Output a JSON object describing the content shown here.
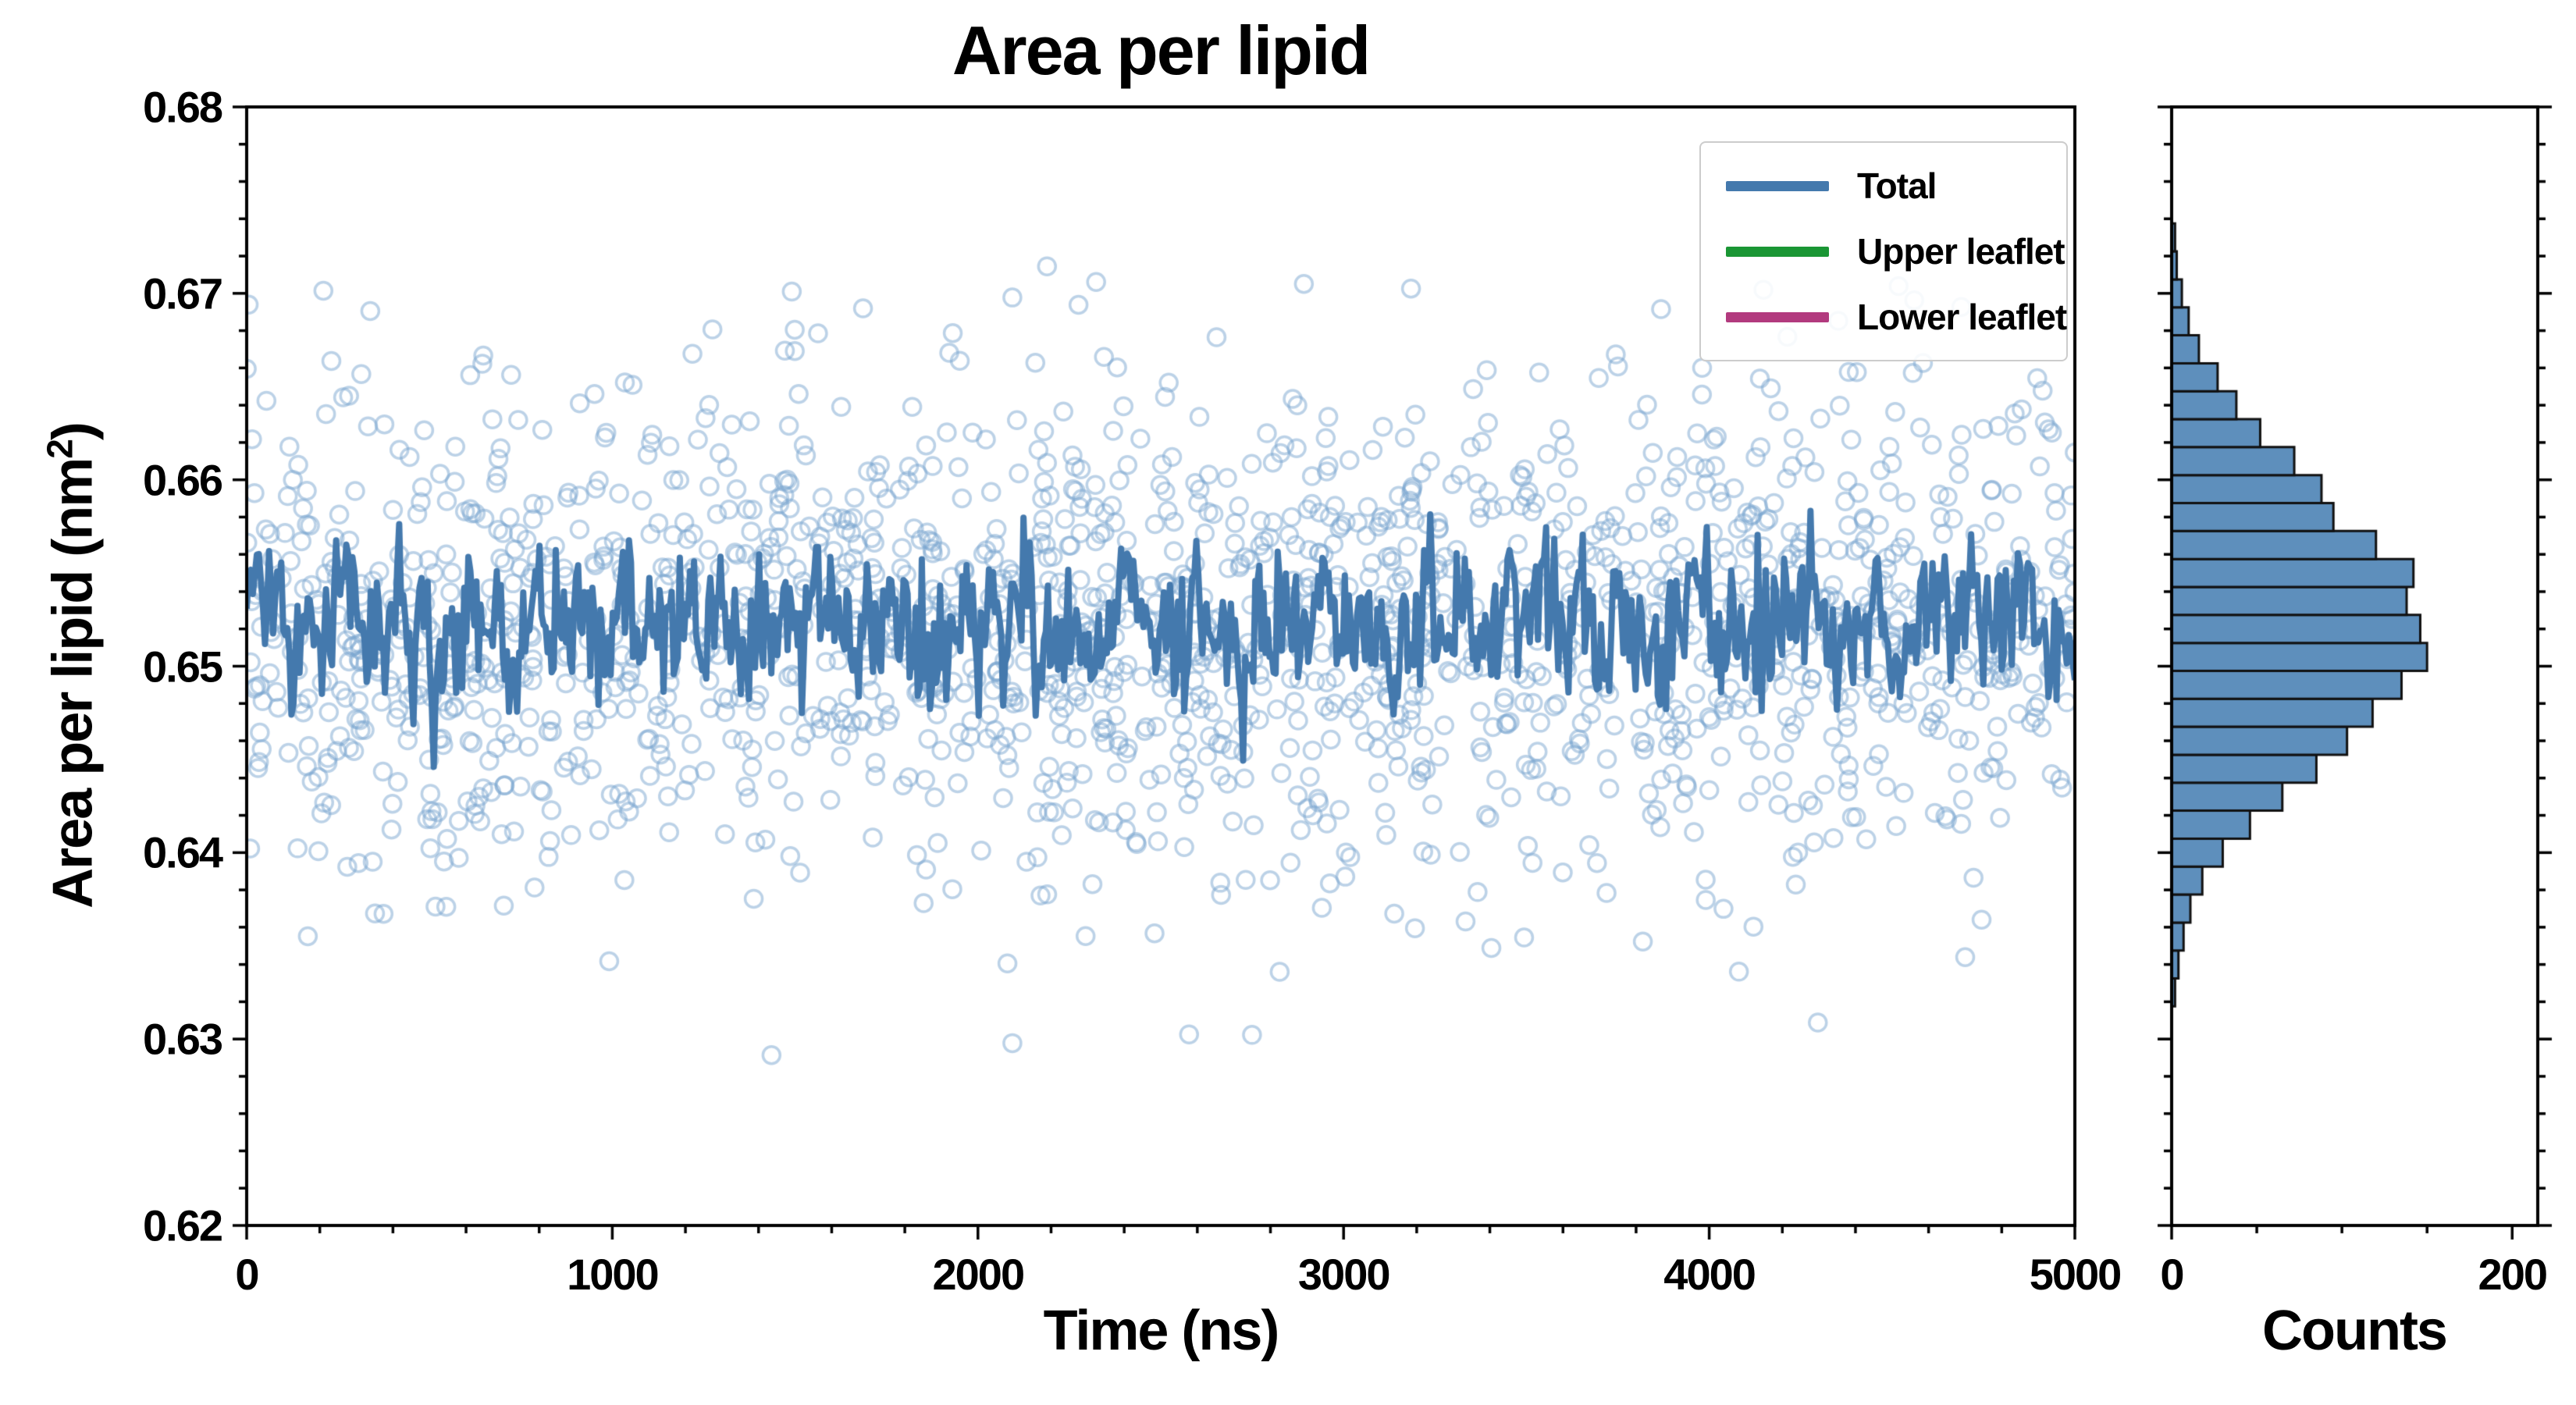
{
  "title": "Area per lipid",
  "chart_data": [
    {
      "type": "scatter",
      "title": "Area per lipid",
      "xlabel": "Time (ns)",
      "ylabel": "Area per lipid (nm2)",
      "ylabel_parts": {
        "main": "Area per lipid (nm",
        "sup": "2",
        "end": ")"
      },
      "xlim": [
        0,
        5000
      ],
      "ylim": [
        0.62,
        0.68
      ],
      "xtick_values": [
        0,
        1000,
        2000,
        3000,
        4000,
        5000
      ],
      "xtick_labels": [
        "0",
        "1000",
        "2000",
        "3000",
        "4000",
        "5000"
      ],
      "ytick_values": [
        0.62,
        0.63,
        0.64,
        0.65,
        0.66,
        0.67,
        0.68
      ],
      "ytick_labels": [
        "0.62",
        "0.63",
        "0.64",
        "0.65",
        "0.66",
        "0.67",
        "0.68"
      ],
      "x_minor_step": 200,
      "y_minor_step": 0.002,
      "grid": false,
      "legend_position": "upper right",
      "legend": [
        {
          "label": "Total",
          "color": "#4479ad"
        },
        {
          "label": "Upper leaflet",
          "color": "#1a9634"
        },
        {
          "label": "Lower leaflet",
          "color": "#b23a7e"
        }
      ],
      "series": [
        {
          "name": "Total (raw samples)",
          "style": "open-circle-scatter",
          "color": "#7aa6cf",
          "opacity": 0.5,
          "n": 1730,
          "y_mean": 0.652,
          "y_std": 0.0068
        },
        {
          "name": "Total (running average)",
          "style": "line",
          "color": "#4479ad",
          "n": 900,
          "y_mean": 0.6522,
          "y_std": 0.002,
          "y_min": 0.6435,
          "y_max": 0.6595
        },
        {
          "name": "Upper leaflet",
          "style": "line",
          "color": "#1a9634",
          "visible_in_plot": false
        },
        {
          "name": "Lower leaflet",
          "style": "line",
          "color": "#b23a7e",
          "visible_in_plot": false
        }
      ]
    },
    {
      "type": "bar",
      "orientation": "horizontal",
      "xlabel": "Counts",
      "xlim": [
        0,
        215
      ],
      "ylim": [
        0.62,
        0.68
      ],
      "xtick_values": [
        0,
        200
      ],
      "xtick_labels": [
        "0",
        "200"
      ],
      "x_minor_step": 50,
      "bar_color": "#5e8fbc",
      "bar_edge": "#111111",
      "bin_width": 0.0015,
      "bin_centers": [
        0.6325,
        0.634,
        0.6355,
        0.637,
        0.6385,
        0.64,
        0.6415,
        0.643,
        0.6445,
        0.646,
        0.6475,
        0.649,
        0.6505,
        0.652,
        0.6535,
        0.655,
        0.6565,
        0.658,
        0.6595,
        0.661,
        0.6625,
        0.664,
        0.6655,
        0.667,
        0.6685,
        0.67,
        0.6715,
        0.673
      ],
      "counts": [
        2,
        4,
        7,
        11,
        18,
        30,
        46,
        65,
        85,
        103,
        118,
        135,
        150,
        146,
        138,
        142,
        120,
        95,
        88,
        72,
        52,
        38,
        27,
        16,
        10,
        6,
        3,
        2
      ]
    }
  ]
}
